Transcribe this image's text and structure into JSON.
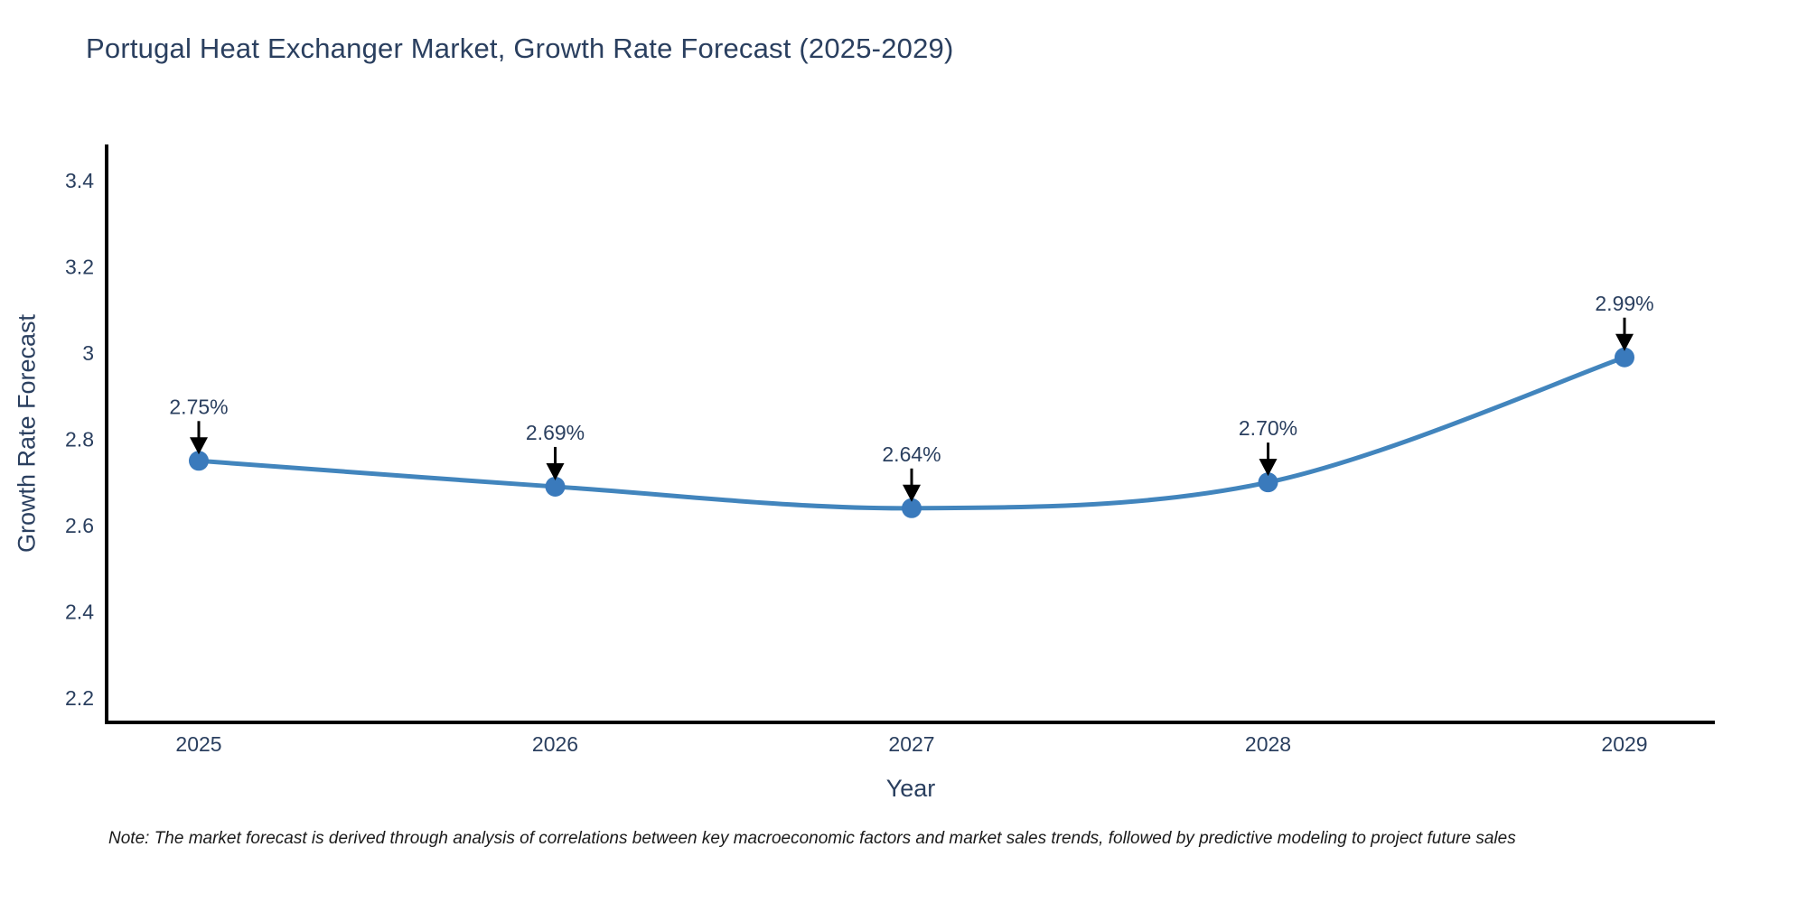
{
  "figure": {
    "title": "Portugal Heat Exchanger Market, Growth Rate Forecast (2025-2029)",
    "note": "Note: The market forecast is derived through analysis of correlations between key macroeconomic factors and market sales trends, followed by predictive modeling to project future sales"
  },
  "chart_data": {
    "type": "line",
    "title": "Portugal Heat Exchanger Market, Growth Rate Forecast (2025-2029)",
    "xlabel": "Year",
    "ylabel": "Growth Rate Forecast",
    "categories": [
      "2025",
      "2026",
      "2027",
      "2028",
      "2029"
    ],
    "series": [
      {
        "name": "Growth Rate Forecast",
        "values": [
          2.75,
          2.69,
          2.64,
          2.7,
          2.99
        ],
        "point_labels": [
          "2.75%",
          "2.69%",
          "2.64%",
          "2.70%",
          "2.99%"
        ]
      }
    ],
    "line_shape": "spline",
    "markers": true,
    "grid": false,
    "legend_position": "none",
    "ytick_labels": [
      "2.2",
      "2.4",
      "2.6",
      "2.8",
      "3",
      "3.2",
      "3.4"
    ],
    "ytick_values": [
      2.2,
      2.4,
      2.6,
      2.8,
      3.0,
      3.2,
      3.4
    ],
    "ylim": [
      2.143,
      3.484
    ],
    "colors": {
      "line": "#4285bd",
      "marker": "#3a7abc",
      "axis": "#000000",
      "tick_text": "#2a3f5f",
      "annotation_text": "#2a3f5f",
      "annotation_arrow": "#000000"
    }
  }
}
